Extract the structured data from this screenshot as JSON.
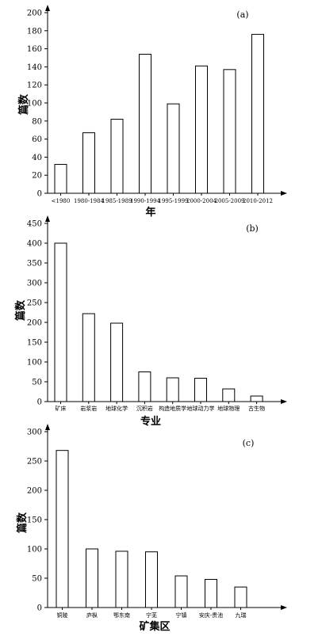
{
  "chart_data": [
    {
      "type": "bar",
      "panel_label": "(a)",
      "xlabel": "年",
      "ylabel": "篇数",
      "categories": [
        "<1980",
        "1980-1984",
        "1985-1989",
        "1990-1994",
        "1995-1999",
        "2000-2004",
        "2005-2009",
        "2010-2012"
      ],
      "values": [
        32,
        67,
        82,
        154,
        99,
        141,
        137,
        176
      ],
      "ylim": [
        0,
        200
      ],
      "yticks": [
        "0",
        "20",
        "40",
        "60",
        "80",
        "100",
        "120",
        "140",
        "160",
        "180",
        "200"
      ],
      "grid": false
    },
    {
      "type": "bar",
      "panel_label": "(b)",
      "xlabel": "专业",
      "ylabel": "篇数",
      "categories": [
        "矿床",
        "岩浆岩",
        "地球化学",
        "沉积岩",
        "构造地质学",
        "地球动力学",
        "地球物理",
        "古生物"
      ],
      "values": [
        400,
        222,
        198,
        75,
        60,
        59,
        32,
        14
      ],
      "ylim": [
        0,
        450
      ],
      "yticks": [
        "0",
        "50",
        "100",
        "150",
        "200",
        "250",
        "300",
        "350",
        "400",
        "450"
      ],
      "grid": false
    },
    {
      "type": "bar",
      "panel_label": "(c)",
      "xlabel": "矿集区",
      "ylabel": "篇数",
      "categories": [
        "铜陵",
        "庐枞",
        "鄂东南",
        "宁芜",
        "宁镇",
        "安庆-贵池",
        "九瑞"
      ],
      "values": [
        268,
        100,
        96,
        95,
        54,
        48,
        35
      ],
      "ylim": [
        0,
        300
      ],
      "yticks": [
        "0",
        "50",
        "100",
        "150",
        "200",
        "250",
        "300"
      ],
      "grid": false
    }
  ]
}
